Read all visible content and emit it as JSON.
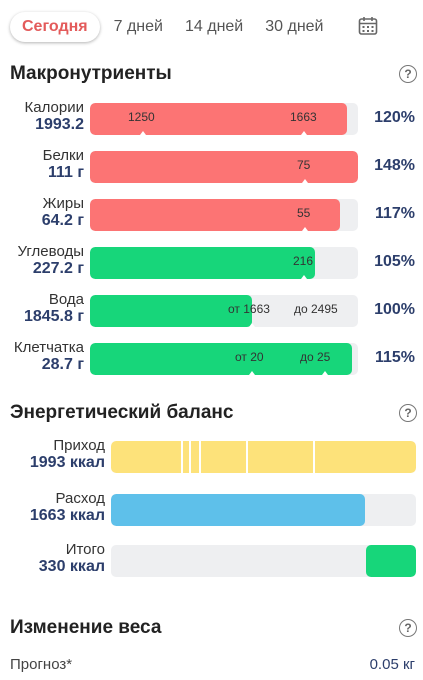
{
  "tabs": [
    {
      "label": "Сегодня",
      "active": true
    },
    {
      "label": "7 дней",
      "active": false
    },
    {
      "label": "14 дней",
      "active": false
    },
    {
      "label": "30 дней",
      "active": false
    }
  ],
  "calendar_icon": "calendar-icon",
  "macros": {
    "title": "Макронутриенты",
    "help": "?",
    "rows": [
      {
        "name": "Калории",
        "value": "1993.2",
        "pct": "120%",
        "color": "#fc7474",
        "fill_fraction": 0.96,
        "marks": [
          "1250",
          "1663"
        ]
      },
      {
        "name": "Белки",
        "value": "111 г",
        "pct": "148%",
        "color": "#fc7474",
        "fill_fraction": 1.0,
        "marks": [
          "75"
        ]
      },
      {
        "name": "Жиры",
        "value": "64.2 г",
        "pct": "117%",
        "color": "#fc7474",
        "fill_fraction": 0.93,
        "marks": [
          "55"
        ]
      },
      {
        "name": "Углеводы",
        "value": "227.2 г",
        "pct": "105%",
        "color": "#17d67a",
        "fill_fraction": 0.84,
        "marks": [
          "216"
        ]
      },
      {
        "name": "Вода",
        "value": "1845.8 г",
        "pct": "100%",
        "color": "#17d67a",
        "fill_fraction": 0.6,
        "marks": [
          "от 1663",
          "до 2495"
        ]
      },
      {
        "name": "Клетчатка",
        "value": "28.7 г",
        "pct": "115%",
        "color": "#17d67a",
        "fill_fraction": 0.98,
        "marks": [
          "от 20",
          "до 25"
        ]
      }
    ]
  },
  "energy": {
    "title": "Энергетический баланс",
    "help": "?",
    "rows": [
      {
        "name": "Приход",
        "value": "1993 ккал",
        "color": "#fde27a",
        "fill_fraction": 1.0
      },
      {
        "name": "Расход",
        "value": "1663 ккал",
        "color": "#5ec0ea",
        "fill_fraction": 0.83
      },
      {
        "name": "Итого",
        "value": "330 ккал",
        "color": "#17d67a",
        "fill_fraction": 0.165
      }
    ]
  },
  "weight": {
    "title": "Изменение веса",
    "help": "?",
    "forecast_label": "Прогноз*",
    "forecast_value": "0.05 кг"
  }
}
